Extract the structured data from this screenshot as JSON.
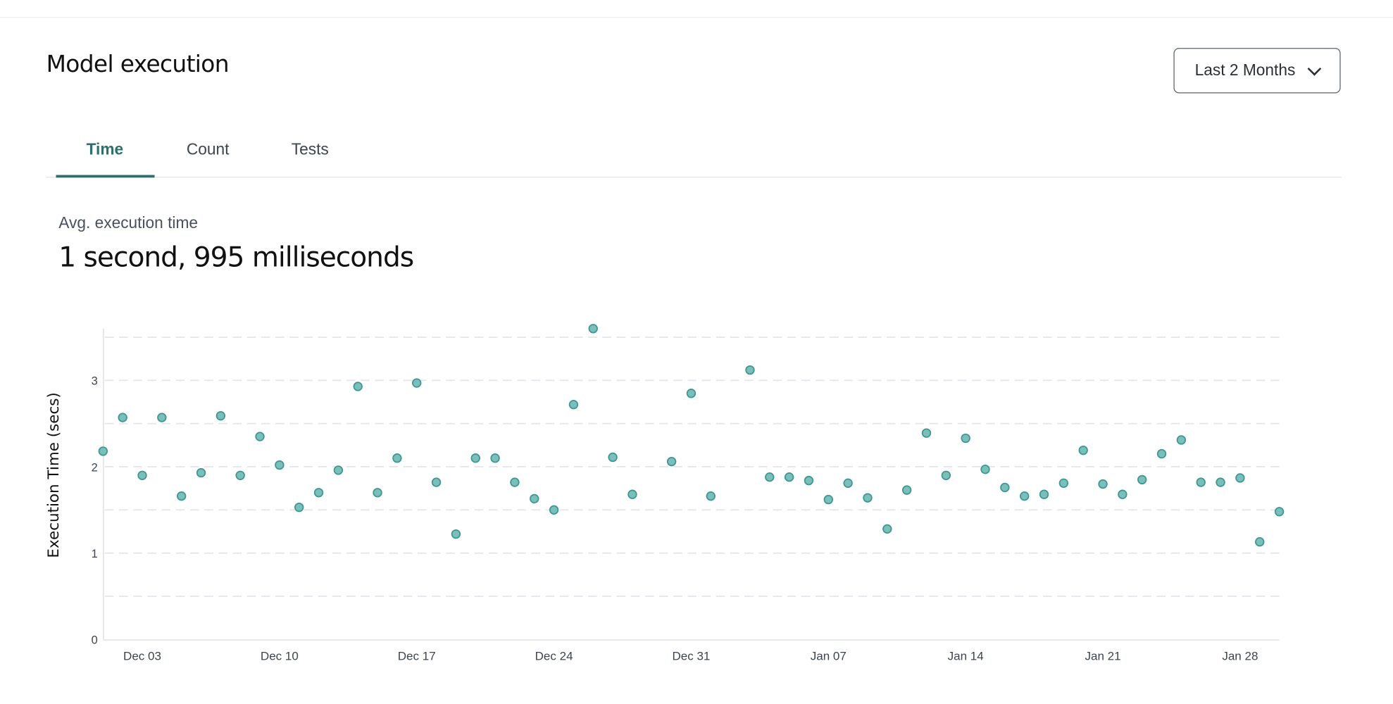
{
  "header": {
    "title": "Model execution",
    "range_dropdown": {
      "selected": "Last 2 Months",
      "icon": "chevron-down-icon"
    }
  },
  "tabs": [
    {
      "label": "Time",
      "active": true
    },
    {
      "label": "Count",
      "active": false
    },
    {
      "label": "Tests",
      "active": false
    }
  ],
  "summary": {
    "label": "Avg. execution time",
    "value": "1 second, 995 milliseconds"
  },
  "colors": {
    "accent": "#2e6f6d",
    "point_fill": "#7bbfbb",
    "point_stroke": "#3f9792"
  },
  "chart_data": {
    "type": "scatter",
    "ylabel": "Execution Time (secs)",
    "xlabel": "",
    "ylim": [
      0,
      3.6
    ],
    "yticks": [
      0,
      1,
      2,
      3
    ],
    "grid": true,
    "xlim": [
      "Dec 01",
      "Jan 30"
    ],
    "xticks": [
      "Dec 03",
      "Dec 10",
      "Dec 17",
      "Dec 24",
      "Dec 31",
      "Jan 07",
      "Jan 14",
      "Jan 21",
      "Jan 28"
    ],
    "points": [
      {
        "x": "Dec 01",
        "y": 2.18
      },
      {
        "x": "Dec 02",
        "y": 2.57
      },
      {
        "x": "Dec 03",
        "y": 1.9
      },
      {
        "x": "Dec 04",
        "y": 2.57
      },
      {
        "x": "Dec 05",
        "y": 1.66
      },
      {
        "x": "Dec 06",
        "y": 1.93
      },
      {
        "x": "Dec 07",
        "y": 2.59
      },
      {
        "x": "Dec 08",
        "y": 1.9
      },
      {
        "x": "Dec 09",
        "y": 2.35
      },
      {
        "x": "Dec 10",
        "y": 2.02
      },
      {
        "x": "Dec 11",
        "y": 1.53
      },
      {
        "x": "Dec 12",
        "y": 1.7
      },
      {
        "x": "Dec 13",
        "y": 1.96
      },
      {
        "x": "Dec 14",
        "y": 2.93
      },
      {
        "x": "Dec 15",
        "y": 1.7
      },
      {
        "x": "Dec 16",
        "y": 2.1
      },
      {
        "x": "Dec 17",
        "y": 2.97
      },
      {
        "x": "Dec 18",
        "y": 1.82
      },
      {
        "x": "Dec 19",
        "y": 1.22
      },
      {
        "x": "Dec 20",
        "y": 2.1
      },
      {
        "x": "Dec 21",
        "y": 2.1
      },
      {
        "x": "Dec 22",
        "y": 1.82
      },
      {
        "x": "Dec 23",
        "y": 1.63
      },
      {
        "x": "Dec 24",
        "y": 1.5
      },
      {
        "x": "Dec 25",
        "y": 2.72
      },
      {
        "x": "Dec 26",
        "y": 3.6
      },
      {
        "x": "Dec 27",
        "y": 2.11
      },
      {
        "x": "Dec 28",
        "y": 1.68
      },
      {
        "x": "Dec 30",
        "y": 2.06
      },
      {
        "x": "Dec 31",
        "y": 2.85
      },
      {
        "x": "Jan 01",
        "y": 1.66
      },
      {
        "x": "Jan 03",
        "y": 3.12
      },
      {
        "x": "Jan 04",
        "y": 1.88
      },
      {
        "x": "Jan 05",
        "y": 1.88
      },
      {
        "x": "Jan 06",
        "y": 1.84
      },
      {
        "x": "Jan 07",
        "y": 1.62
      },
      {
        "x": "Jan 08",
        "y": 1.81
      },
      {
        "x": "Jan 09",
        "y": 1.64
      },
      {
        "x": "Jan 10",
        "y": 1.28
      },
      {
        "x": "Jan 11",
        "y": 1.73
      },
      {
        "x": "Jan 12",
        "y": 2.39
      },
      {
        "x": "Jan 13",
        "y": 1.9
      },
      {
        "x": "Jan 14",
        "y": 2.33
      },
      {
        "x": "Jan 15",
        "y": 1.97
      },
      {
        "x": "Jan 16",
        "y": 1.76
      },
      {
        "x": "Jan 17",
        "y": 1.66
      },
      {
        "x": "Jan 18",
        "y": 1.68
      },
      {
        "x": "Jan 19",
        "y": 1.81
      },
      {
        "x": "Jan 20",
        "y": 2.19
      },
      {
        "x": "Jan 21",
        "y": 1.8
      },
      {
        "x": "Jan 22",
        "y": 1.68
      },
      {
        "x": "Jan 23",
        "y": 1.85
      },
      {
        "x": "Jan 24",
        "y": 2.15
      },
      {
        "x": "Jan 25",
        "y": 2.31
      },
      {
        "x": "Jan 26",
        "y": 1.82
      },
      {
        "x": "Jan 27",
        "y": 1.82
      },
      {
        "x": "Jan 28",
        "y": 1.87
      },
      {
        "x": "Jan 29",
        "y": 1.13
      },
      {
        "x": "Jan 30",
        "y": 1.48
      }
    ]
  }
}
